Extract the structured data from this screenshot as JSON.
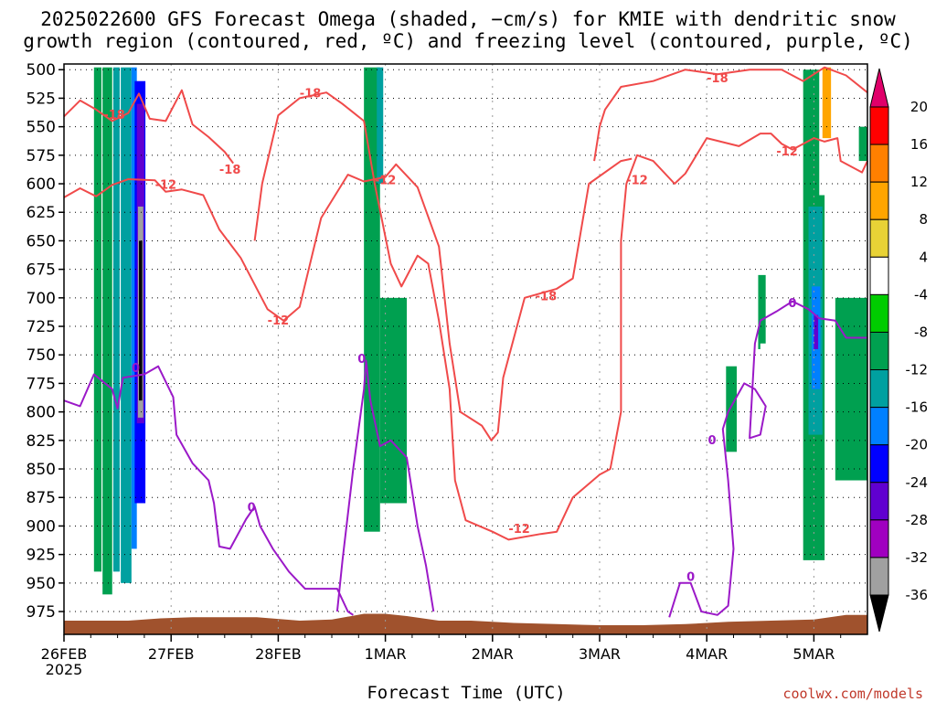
{
  "chart_data": {
    "type": "heatmap",
    "title_lines": [
      "2025022600 GFS Forecast Omega (shaded, −cm/s) for KMIE with dendritic snow",
      "growth region (contoured, red, ºC) and freezing level (contoured, purple, ºC)"
    ],
    "xlabel": "Forecast Time (UTC)",
    "ylabel": "",
    "x_ticks": [
      "26FEB",
      "27FEB",
      "28FEB",
      "1MAR",
      "2MAR",
      "3MAR",
      "4MAR",
      "5MAR"
    ],
    "x_year_label": "2025",
    "x_range_days": [
      0,
      7.5
    ],
    "y_ticks": [
      500,
      525,
      550,
      575,
      600,
      625,
      650,
      675,
      700,
      725,
      750,
      775,
      800,
      825,
      850,
      875,
      900,
      925,
      950,
      975
    ],
    "y_range_hpa": [
      495,
      995
    ],
    "grid": true,
    "colorbar": {
      "labels": [
        20,
        16,
        12,
        8,
        4,
        -4,
        -8,
        -12,
        -16,
        -20,
        -24,
        -28,
        -32,
        -36
      ],
      "colors": [
        "#ff0000",
        "#ff8000",
        "#ffa500",
        "#e8d236",
        "#ffffff",
        "#00cc00",
        "#00a050",
        "#00a0a0",
        "#0080ff",
        "#0000ff",
        "#6000d0",
        "#a000c0",
        "#a0a0a0",
        "#000000"
      ],
      "top_arrow_color": "#e0006a",
      "bottom_arrow_color": "#000000"
    },
    "contour_labels": [
      {
        "text": "-18",
        "color": "red",
        "x": 0.47,
        "y": 540
      },
      {
        "text": "-18",
        "color": "red",
        "x": 2.3,
        "y": 521
      },
      {
        "text": "-18",
        "color": "red",
        "x": 1.55,
        "y": 588
      },
      {
        "text": "-12",
        "color": "red",
        "x": 0.95,
        "y": 601
      },
      {
        "text": "-12",
        "color": "red",
        "x": 3.0,
        "y": 597
      },
      {
        "text": "-12",
        "color": "red",
        "x": 2.0,
        "y": 720
      },
      {
        "text": "-18",
        "color": "red",
        "x": 4.5,
        "y": 699
      },
      {
        "text": "-12",
        "color": "red",
        "x": 4.25,
        "y": 903
      },
      {
        "text": "-12",
        "color": "red",
        "x": 5.35,
        "y": 597
      },
      {
        "text": "-18",
        "color": "red",
        "x": 6.1,
        "y": 508
      },
      {
        "text": "-12",
        "color": "red",
        "x": 6.75,
        "y": 572
      },
      {
        "text": "0",
        "color": "purple",
        "x": 0.67,
        "y": 762
      },
      {
        "text": "0",
        "color": "purple",
        "x": 1.75,
        "y": 884
      },
      {
        "text": "0",
        "color": "purple",
        "x": 2.78,
        "y": 754
      },
      {
        "text": "0",
        "color": "purple",
        "x": 5.85,
        "y": 945
      },
      {
        "text": "0",
        "color": "purple",
        "x": 6.05,
        "y": 825
      },
      {
        "text": "0",
        "color": "purple",
        "x": 6.8,
        "y": 705
      }
    ],
    "omega_regions": [
      {
        "x0": 0.28,
        "x1": 0.35,
        "y0": 498,
        "y1": 940,
        "value": -8
      },
      {
        "x0": 0.36,
        "x1": 0.45,
        "y0": 498,
        "y1": 960,
        "value": -8
      },
      {
        "x0": 0.46,
        "x1": 0.52,
        "y0": 498,
        "y1": 940,
        "value": -12
      },
      {
        "x0": 0.53,
        "x1": 0.63,
        "y0": 498,
        "y1": 950,
        "value": -12
      },
      {
        "x0": 0.63,
        "x1": 0.68,
        "y0": 498,
        "y1": 920,
        "value": -16
      },
      {
        "x0": 0.66,
        "x1": 0.76,
        "y0": 510,
        "y1": 880,
        "value": -20
      },
      {
        "x0": 0.68,
        "x1": 0.75,
        "y0": 530,
        "y1": 810,
        "value": -24
      },
      {
        "x0": 0.69,
        "x1": 0.74,
        "y0": 620,
        "y1": 805,
        "value": -32
      },
      {
        "x0": 0.7,
        "x1": 0.73,
        "y0": 650,
        "y1": 790,
        "value": -36
      },
      {
        "x0": 2.8,
        "x1": 2.95,
        "y0": 498,
        "y1": 905,
        "value": -8
      },
      {
        "x0": 2.95,
        "x1": 3.2,
        "y0": 700,
        "y1": 880,
        "value": -8
      },
      {
        "x0": 2.92,
        "x1": 2.98,
        "y0": 498,
        "y1": 600,
        "value": -12
      },
      {
        "x0": 6.18,
        "x1": 6.28,
        "y0": 760,
        "y1": 835,
        "value": -8
      },
      {
        "x0": 6.48,
        "x1": 6.55,
        "y0": 680,
        "y1": 745,
        "value": -8
      },
      {
        "x0": 6.9,
        "x1": 7.1,
        "y0": 500,
        "y1": 930,
        "value": -8
      },
      {
        "x0": 6.95,
        "x1": 7.08,
        "y0": 620,
        "y1": 820,
        "value": -12
      },
      {
        "x0": 6.98,
        "x1": 7.06,
        "y0": 690,
        "y1": 780,
        "value": -16
      },
      {
        "x0": 7.0,
        "x1": 7.04,
        "y0": 715,
        "y1": 745,
        "value": -24
      },
      {
        "x0": 7.2,
        "x1": 7.5,
        "y0": 700,
        "y1": 860,
        "value": -8
      },
      {
        "x0": 7.42,
        "x1": 7.5,
        "y0": 550,
        "y1": 580,
        "value": -8
      },
      {
        "x0": 0.0,
        "x1": 0.08,
        "y0": 498,
        "y1": 700,
        "value": 4
      },
      {
        "x0": 0.14,
        "x1": 0.2,
        "y0": 498,
        "y1": 580,
        "value": 4
      },
      {
        "x0": 1.18,
        "x1": 1.3,
        "y0": 498,
        "y1": 560,
        "value": 4
      },
      {
        "x0": 1.35,
        "x1": 1.45,
        "y0": 498,
        "y1": 530,
        "value": 4
      },
      {
        "x0": 2.15,
        "x1": 2.2,
        "y0": 640,
        "y1": 720,
        "value": 4
      },
      {
        "x0": 3.17,
        "x1": 3.22,
        "y0": 498,
        "y1": 580,
        "value": 4
      },
      {
        "x0": 3.92,
        "x1": 4.05,
        "y0": 760,
        "y1": 930,
        "value": 4
      },
      {
        "x0": 4.1,
        "x1": 4.14,
        "y0": 590,
        "y1": 615,
        "value": 4
      },
      {
        "x0": 4.92,
        "x1": 4.96,
        "y0": 498,
        "y1": 545,
        "value": 4
      },
      {
        "x0": 6.5,
        "x1": 6.6,
        "y0": 740,
        "y1": 830,
        "value": 4
      },
      {
        "x0": 7.05,
        "x1": 7.25,
        "y0": 498,
        "y1": 610,
        "value": 4
      },
      {
        "x0": 7.08,
        "x1": 7.16,
        "y0": 498,
        "y1": 560,
        "value": 12
      }
    ]
  },
  "credit": "coolwx.com/models"
}
